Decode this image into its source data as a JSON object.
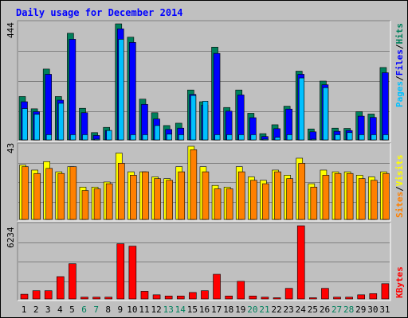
{
  "chart_data": [
    {
      "type": "bar",
      "title": "Daily usage for December 2014",
      "ylabel_parts": [
        "Pages",
        "/",
        "Files",
        "/",
        "Hits"
      ],
      "ymax_label": "444",
      "ylim": [
        0,
        444
      ],
      "categories": [
        "1",
        "2",
        "3",
        "4",
        "5",
        "6",
        "7",
        "8",
        "9",
        "10",
        "11",
        "12",
        "13",
        "14",
        "15",
        "16",
        "17",
        "18",
        "19",
        "20",
        "21",
        "22",
        "23",
        "24",
        "25",
        "26",
        "27",
        "28",
        "29",
        "30",
        "31"
      ],
      "weekend_days": [
        "6",
        "7",
        "13",
        "14",
        "20",
        "21",
        "27",
        "28"
      ],
      "series": [
        {
          "name": "Hits",
          "values": [
            166,
            119,
            271,
            166,
            408,
            121,
            28,
            48,
            444,
            393,
            156,
            104,
            55,
            64,
            191,
            146,
            355,
            124,
            191,
            102,
            24,
            58,
            129,
            263,
            42,
            225,
            45,
            44,
            108,
            99,
            277
          ]
        },
        {
          "name": "Files",
          "values": [
            146,
            108,
            251,
            152,
            385,
            104,
            17,
            36,
            425,
            373,
            136,
            80,
            40,
            45,
            174,
            133,
            331,
            110,
            172,
            85,
            13,
            43,
            118,
            251,
            31,
            211,
            33,
            36,
            91,
            86,
            257
          ]
        },
        {
          "name": "Pages",
          "values": [
            120,
            98,
            20,
            140,
            20,
            20,
            3,
            36,
            385,
            20,
            20,
            55,
            22,
            20,
            170,
            148,
            20,
            20,
            20,
            20,
            3,
            10,
            20,
            237,
            2,
            200,
            20,
            28,
            20,
            20,
            20
          ]
        }
      ]
    },
    {
      "type": "bar",
      "ylabel_parts": [
        "Sites",
        "/",
        "Visits"
      ],
      "ymax_label": "43",
      "ylim": [
        0,
        43
      ],
      "categories": [
        "1",
        "2",
        "3",
        "4",
        "5",
        "6",
        "7",
        "8",
        "9",
        "10",
        "11",
        "12",
        "13",
        "14",
        "15",
        "16",
        "17",
        "18",
        "19",
        "20",
        "21",
        "22",
        "23",
        "24",
        "25",
        "26",
        "27",
        "28",
        "29",
        "30",
        "31"
      ],
      "series": [
        {
          "name": "Visits",
          "values": [
            32,
            29,
            34,
            28,
            31,
            19,
            19,
            22,
            39,
            28,
            28,
            25,
            24,
            31,
            43,
            31,
            20,
            19,
            31,
            25,
            23,
            29,
            26,
            36,
            21,
            29,
            28,
            28,
            26,
            25,
            28
          ]
        },
        {
          "name": "Sites",
          "values": [
            31,
            27,
            30,
            27,
            31,
            17,
            18,
            21,
            33,
            26,
            28,
            24,
            23,
            28,
            41,
            28,
            18,
            18,
            28,
            23,
            21,
            28,
            24,
            33,
            19,
            26,
            27,
            27,
            24,
            23,
            27
          ]
        }
      ]
    },
    {
      "type": "bar",
      "ylabel_parts": [
        "KBytes"
      ],
      "ymax_label": "6234",
      "ylim": [
        0,
        6234
      ],
      "categories": [
        "1",
        "2",
        "3",
        "4",
        "5",
        "6",
        "7",
        "8",
        "9",
        "10",
        "11",
        "12",
        "13",
        "14",
        "15",
        "16",
        "17",
        "18",
        "19",
        "20",
        "21",
        "22",
        "23",
        "24",
        "25",
        "26",
        "27",
        "28",
        "29",
        "30",
        "31"
      ],
      "series": [
        {
          "name": "KBytes",
          "values": [
            400,
            700,
            700,
            1900,
            3000,
            150,
            150,
            150,
            4700,
            4500,
            650,
            350,
            250,
            250,
            550,
            700,
            2100,
            250,
            1500,
            250,
            150,
            100,
            900,
            6234,
            100,
            900,
            150,
            150,
            350,
            450,
            1300
          ]
        }
      ]
    }
  ],
  "colors": {
    "background": "#C0C0C0",
    "hits": "#00805C",
    "files": "#0000FF",
    "pages": "#00C0FF",
    "visits": "#FFFF00",
    "sites": "#FF8000",
    "kbytes": "#FF0000",
    "title": "#0000FF",
    "weekend_label": "#00805C"
  }
}
